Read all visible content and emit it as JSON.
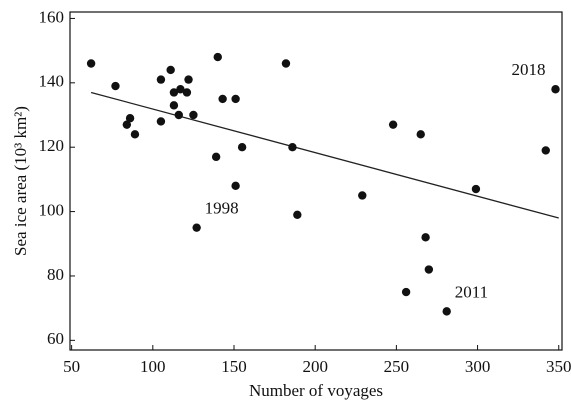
{
  "chart_data": {
    "type": "scatter",
    "xlabel": "Number of voyages",
    "ylabel": "Sea ice area (10³ km²)",
    "x": [
      62,
      77,
      84,
      86,
      89,
      105,
      105,
      111,
      113,
      113,
      116,
      117,
      121,
      122,
      125,
      127,
      139,
      140,
      143,
      151,
      151,
      155,
      182,
      186,
      189,
      229,
      248,
      256,
      265,
      268,
      270,
      281,
      299,
      342,
      348
    ],
    "values": [
      146,
      139,
      127,
      129,
      124,
      128,
      141,
      144,
      137,
      133,
      130,
      138,
      137,
      141,
      130,
      95,
      117,
      148,
      135,
      135,
      108,
      120,
      146,
      120,
      99,
      105,
      127,
      75,
      124,
      92,
      82,
      69,
      107,
      119,
      138
    ],
    "color": "#111111",
    "trend": {
      "x": [
        62,
        350
      ],
      "y": [
        137,
        98
      ],
      "color": "#222222"
    },
    "annotations": [
      {
        "text": "1998",
        "x": 127,
        "y": 95
      },
      {
        "text": "2011",
        "x": 281,
        "y": 69
      },
      {
        "text": "2018",
        "x": 348,
        "y": 138
      }
    ],
    "xlim": [
      49,
      352
    ],
    "ylim": [
      57,
      162
    ],
    "xticks": [
      50,
      100,
      150,
      200,
      250,
      300,
      350
    ],
    "yticks": [
      60,
      80,
      100,
      120,
      140,
      160
    ],
    "grid": false
  }
}
